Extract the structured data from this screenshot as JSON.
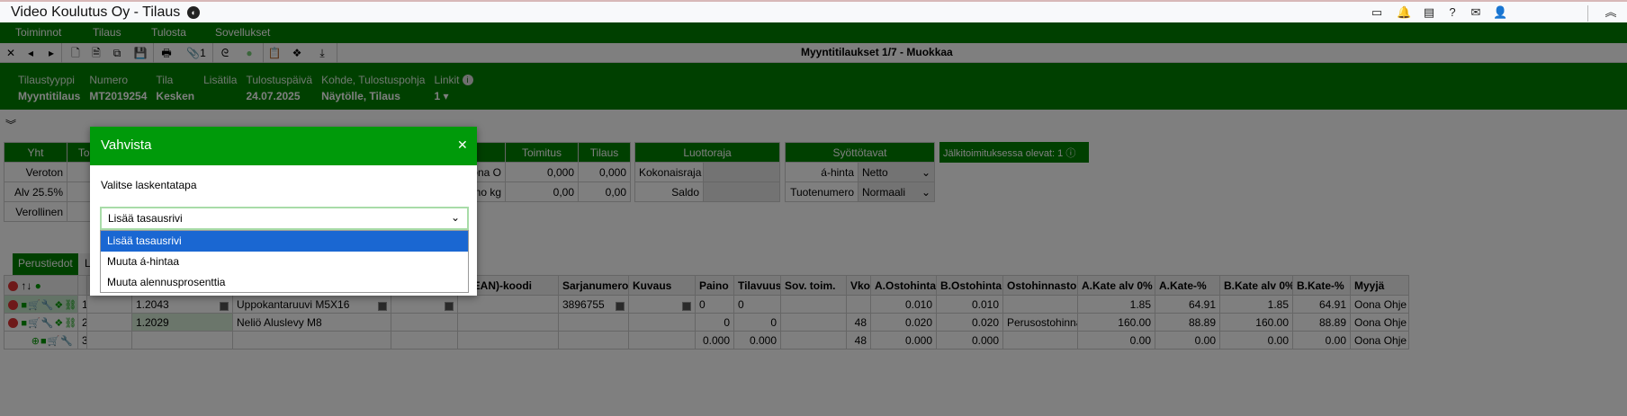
{
  "app": {
    "title": "Video Koulutus Oy - Tilaus",
    "title_icon": "palette-icon",
    "top_icons": [
      "window-icon",
      "bell-icon",
      "newspaper-icon",
      "help-icon",
      "mail-icon",
      "user-icon",
      "chevron-double-up-icon"
    ]
  },
  "menu": [
    "Toiminnot",
    "Tilaus",
    "Tulosta",
    "Sovellukset"
  ],
  "toolbar": {
    "title": "Myyntitilaukset 1/7 - Muokkaa",
    "attachments": "1"
  },
  "header": {
    "fields": [
      {
        "label": "Tilaustyyppi",
        "value": "Myyntitilaus"
      },
      {
        "label": "Numero",
        "value": "MT2019254"
      },
      {
        "label": "Tila",
        "value": "Kesken"
      },
      {
        "label": "Lisätila",
        "value": ""
      },
      {
        "label": "Tulostuspäivä",
        "value": "24.07.2025"
      },
      {
        "label": "Kohde, Tulostuspohja",
        "value": "Näytölle, Tilaus"
      },
      {
        "label": "Linkit",
        "value": "1"
      }
    ]
  },
  "totals": {
    "h1": "Yht",
    "h2": "Toim",
    "rows": [
      "Veroton",
      "Alv 25.5%",
      "Verollinen"
    ],
    "h_toimitus": "Toimitus",
    "h_tilaus": "Tilaus",
    "r1": {
      "label": "ona O",
      "toimitus": "0,000",
      "tilaus": "0,000"
    },
    "r2": {
      "label": "no kg",
      "toimitus": "0,00",
      "tilaus": "0,00"
    }
  },
  "credit": {
    "title": "Luottoraja",
    "rows": [
      "Kokonaisraja",
      "Saldo"
    ]
  },
  "input_modes": {
    "title": "Syöttötavat",
    "rows": [
      {
        "label": "á-hinta",
        "value": "Netto"
      },
      {
        "label": "Tuotenumero",
        "value": "Normaali"
      }
    ]
  },
  "backorder_badge": "Jälkitoimituksessa olevat: 1",
  "tabs": [
    "Perustiedot",
    "L"
  ],
  "grid": {
    "columns": [
      "",
      "",
      "",
      "",
      "",
      "",
      "N(EAN)-koodi",
      "Sarjanumero",
      "Kuvaus",
      "Paino",
      "Tilavuus",
      "Sov. toim.",
      "Vko",
      "A.Ostohinta",
      "B.Ostohinta",
      "Ostohinnasto",
      "A.Kate alv 0%",
      "A.Kate-%",
      "B.Kate alv 0%",
      "B.Kate-%",
      "Myyjä"
    ],
    "rows": [
      [
        "1",
        "",
        "1.2043",
        "Uppokantaruuvi M5X16",
        "",
        "",
        "3896755",
        "",
        "0",
        "0",
        "",
        "",
        "0.010",
        "0.010",
        "",
        "1.85",
        "64.91",
        "1.85",
        "64.91",
        "Oona Ohje"
      ],
      [
        "2",
        "",
        "1.2029",
        "Neliö Aluslevy M8",
        "",
        "",
        "",
        "",
        "0",
        "0",
        "",
        "48",
        "0.020",
        "0.020",
        "Perusostohinnasto",
        "160.00",
        "88.89",
        "160.00",
        "88.89",
        "Oona Ohje"
      ],
      [
        "3",
        "",
        "",
        "",
        "",
        "",
        "",
        "",
        "0.000",
        "0.000",
        "",
        "48",
        "0.000",
        "0.000",
        "",
        "0.00",
        "0.00",
        "0.00",
        "0.00",
        "Oona Ohje"
      ]
    ]
  },
  "modal": {
    "title": "Vahvista",
    "label": "Valitse laskentatapa",
    "selected": "Lisää tasausrivi",
    "options": [
      "Lisää tasausrivi",
      "Muuta á-hintaa",
      "Muuta alennusprosenttia"
    ]
  },
  "colors": {
    "green": "#008000",
    "modal_header": "#009a0a",
    "selected_option": "#1a67d2"
  }
}
